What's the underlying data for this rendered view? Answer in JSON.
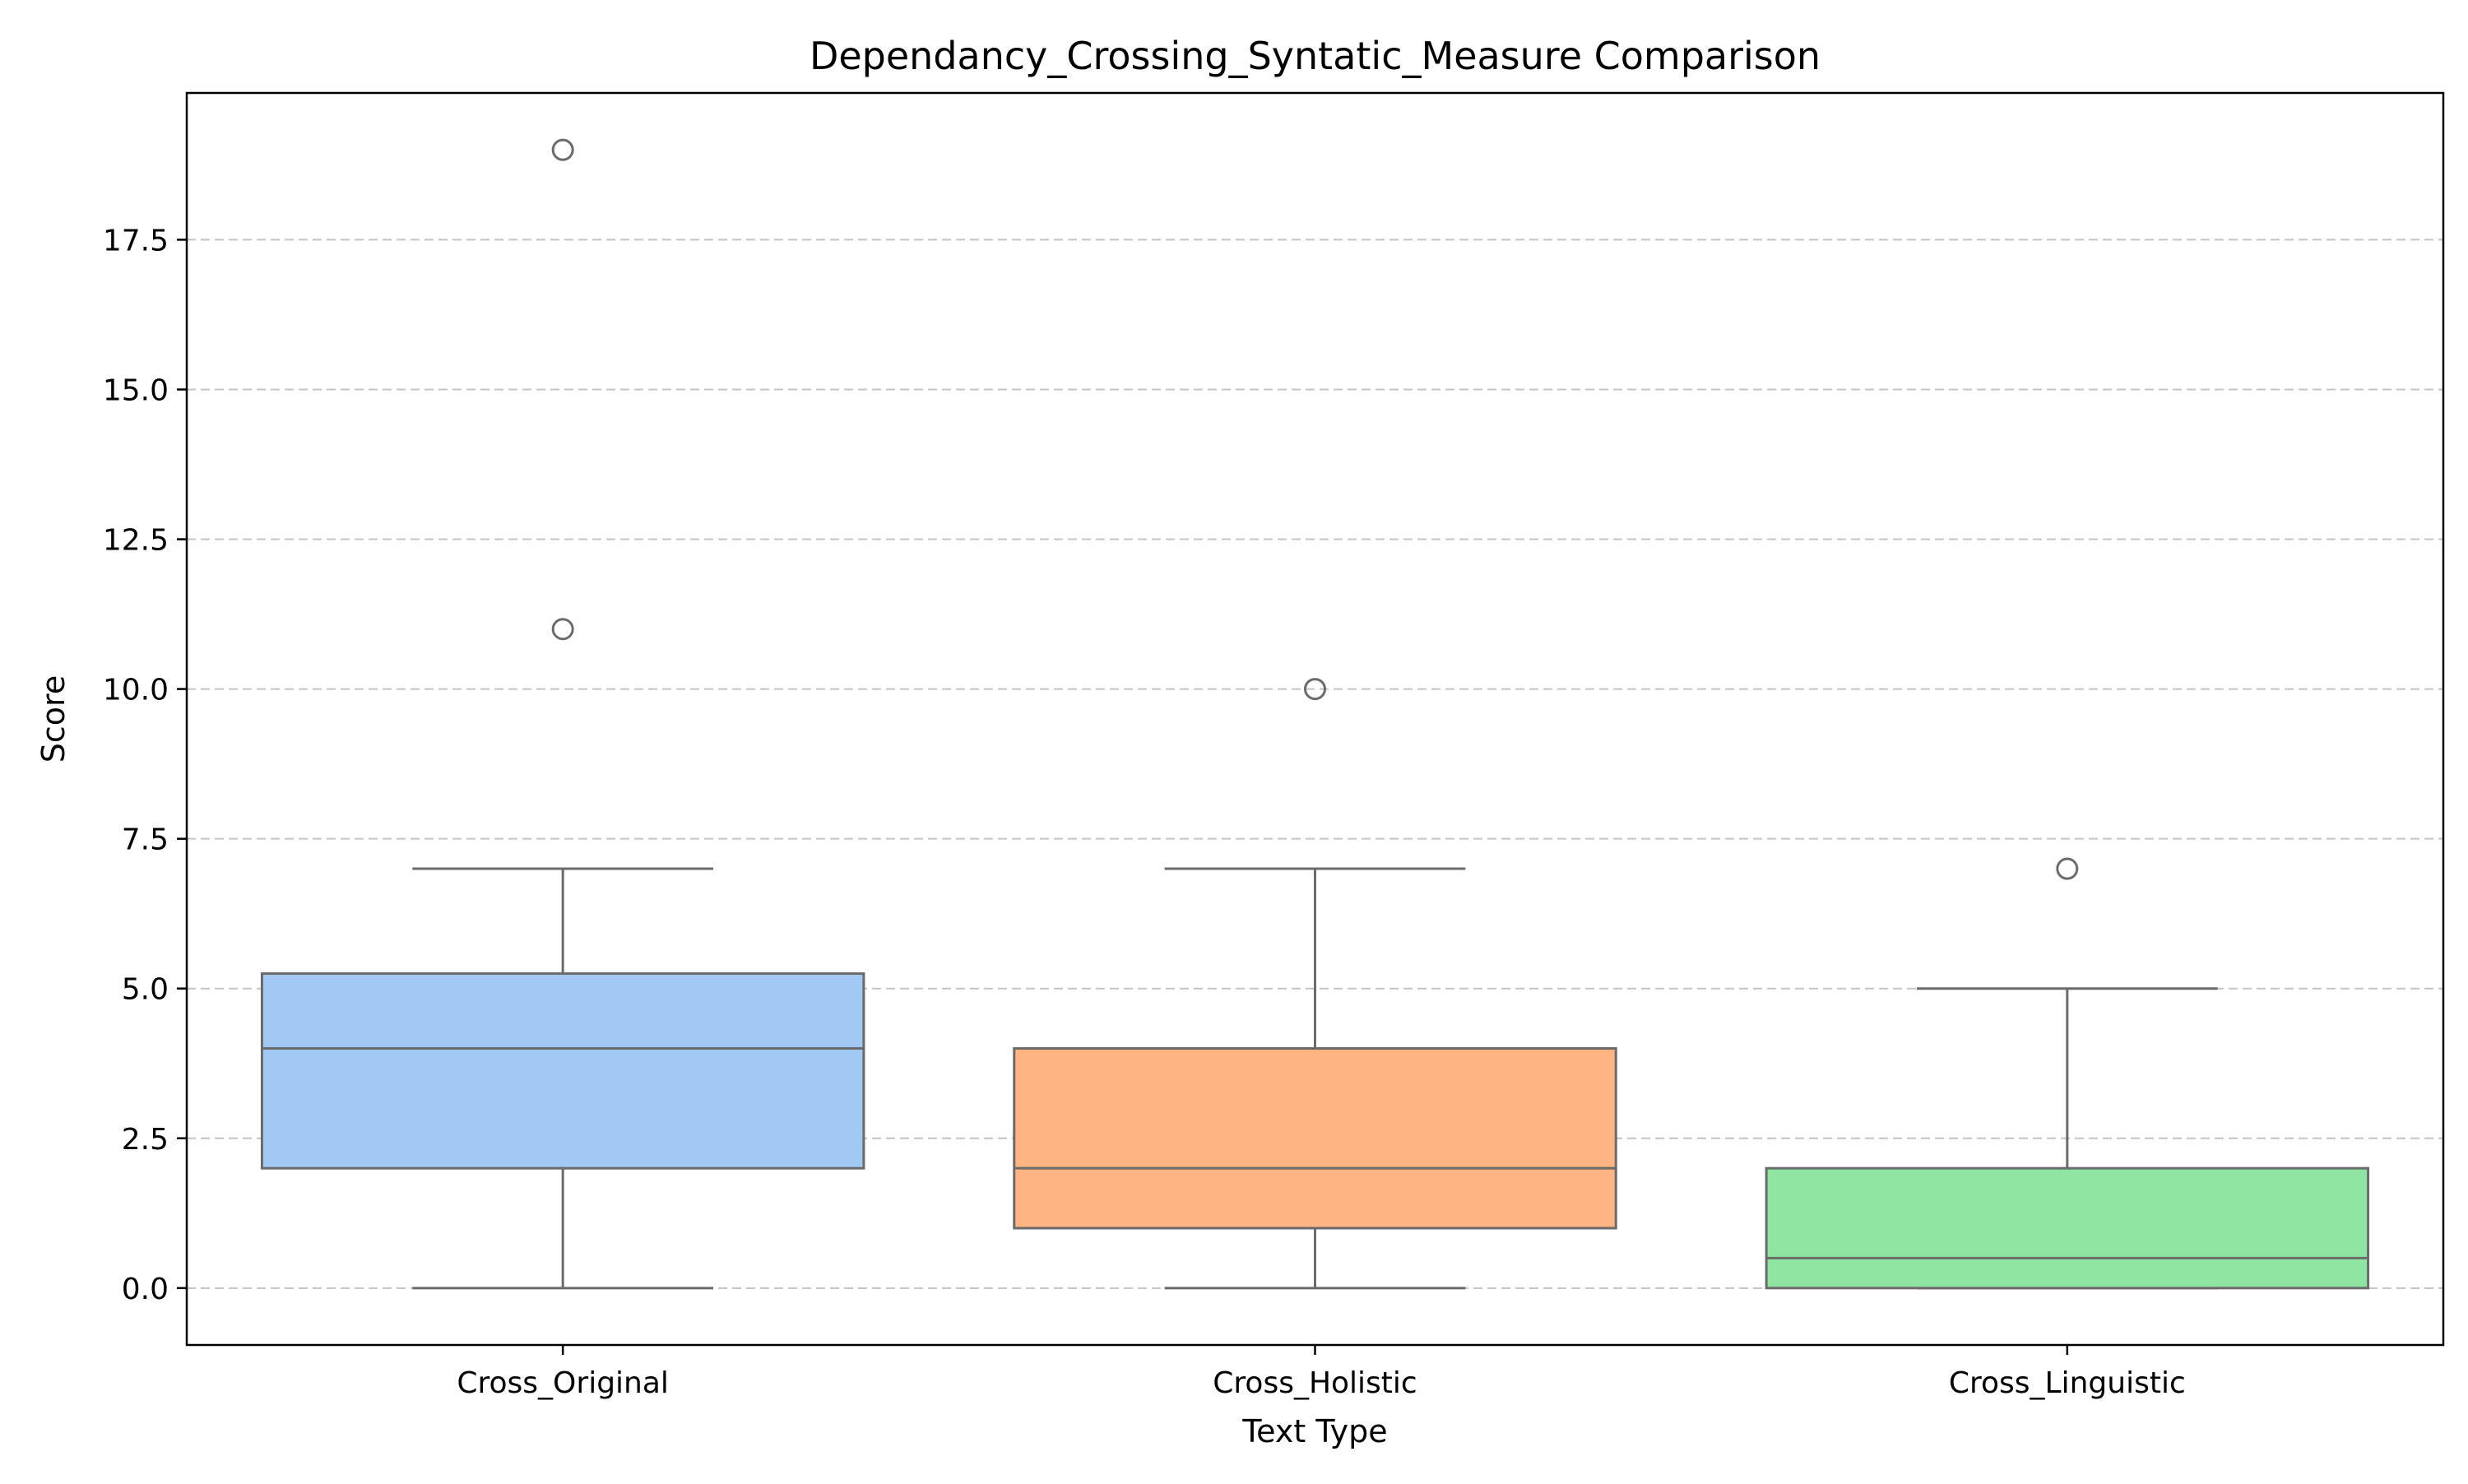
{
  "chart_data": {
    "type": "box",
    "title": "Dependancy_Crossing_Syntatic_Measure Comparison",
    "xlabel": "Text Type",
    "ylabel": "Score",
    "ylim": [
      -0.95,
      19.95
    ],
    "yticks": [
      0.0,
      2.5,
      5.0,
      7.5,
      10.0,
      12.5,
      15.0,
      17.5
    ],
    "ytick_labels": [
      "0.0",
      "2.5",
      "5.0",
      "7.5",
      "10.0",
      "12.5",
      "15.0",
      "17.5"
    ],
    "grid": "horizontal-dashed",
    "categories": [
      "Cross_Original",
      "Cross_Holistic",
      "Cross_Linguistic"
    ],
    "boxes": [
      {
        "category": "Cross_Original",
        "whisker_low": 0,
        "q1": 2,
        "median": 4,
        "q3": 5.25,
        "whisker_high": 7,
        "outliers": [
          11,
          19
        ],
        "color": "#a1c9f4"
      },
      {
        "category": "Cross_Holistic",
        "whisker_low": 0,
        "q1": 1,
        "median": 2,
        "q3": 4,
        "whisker_high": 7,
        "outliers": [
          10
        ],
        "color": "#ffb482"
      },
      {
        "category": "Cross_Linguistic",
        "whisker_low": 0,
        "q1": 0,
        "median": 0.5,
        "q3": 2,
        "whisker_high": 5,
        "outliers": [
          7
        ],
        "color": "#8de5a1"
      }
    ]
  }
}
